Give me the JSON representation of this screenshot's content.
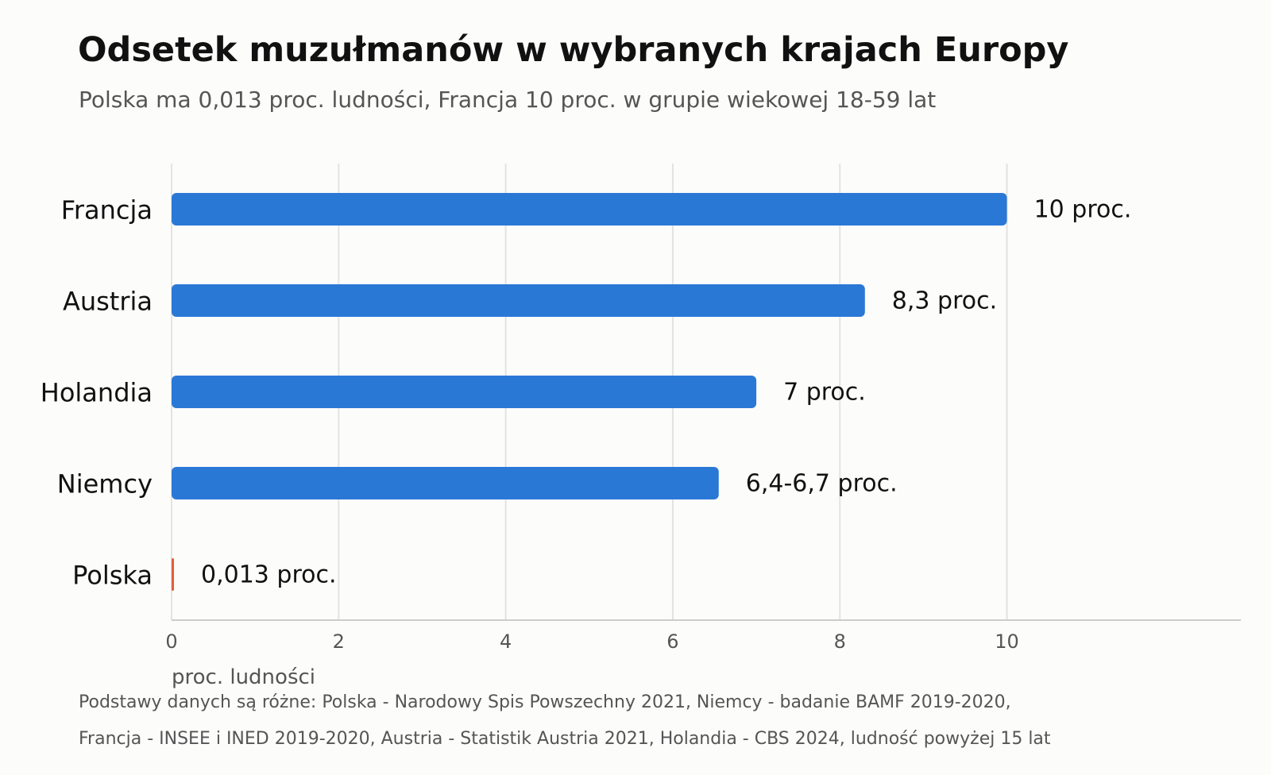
{
  "chart_data": {
    "type": "bar",
    "orientation": "horizontal",
    "title": "Odsetek muzułmanów w wybranych krajach Europy",
    "subtitle": "Polska ma 0,013 proc. ludności, Francja 10 proc. w grupie wiekowej 18-59 lat",
    "xlabel": "proc. ludności",
    "ylabel": "",
    "categories": [
      "Francja",
      "Austria",
      "Holandia",
      "Niemcy",
      "Polska"
    ],
    "values": [
      10,
      8.3,
      7,
      6.55,
      0.013
    ],
    "data_labels": [
      "10 proc.",
      "8,3 proc.",
      "7 proc.",
      "6,4-6,7 proc.",
      "0,013 proc."
    ],
    "bar_colors": [
      "#2a78d6",
      "#2a78d6",
      "#2a78d6",
      "#2a78d6",
      "#e0603a"
    ],
    "xlim": [
      0,
      12.8
    ],
    "xticks": [
      0,
      2,
      4,
      6,
      8,
      10
    ],
    "grid": "vertical",
    "legend": "none"
  },
  "source": {
    "line1": "Podstawy danych są różne: Polska - Narodowy Spis Powszechny 2021, Niemcy - badanie BAMF 2019-2020,",
    "line2": "Francja - INSEE i INED 2019-2020, Austria - Statistik Austria 2021, Holandia - CBS 2024, ludność powyżej 15 lat"
  },
  "colors": {
    "bar": "#2a78d6",
    "highlight": "#e0603a",
    "grid": "#e3e3e3",
    "axis": "#cccccc",
    "text": "#111111",
    "muted": "#555555"
  }
}
